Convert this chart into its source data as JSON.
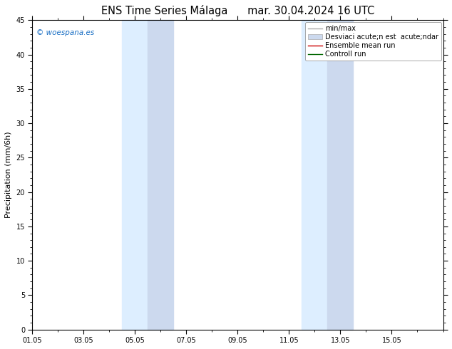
{
  "title_left": "ENS Time Series Málaga",
  "title_right": "mar. 30.04.2024 16 UTC",
  "ylabel": "Precipitation (mm/6h)",
  "ylim": [
    0,
    45
  ],
  "yticks": [
    0,
    5,
    10,
    15,
    20,
    25,
    30,
    35,
    40,
    45
  ],
  "xlim": [
    0,
    16
  ],
  "x_tick_labels": [
    "01.05",
    "03.05",
    "05.05",
    "07.05",
    "09.05",
    "11.05",
    "13.05",
    "15.05"
  ],
  "x_tick_positions": [
    0,
    2,
    4,
    6,
    8,
    10,
    12,
    14
  ],
  "shaded_regions": [
    {
      "x_start": 3.5,
      "x_end": 4.5,
      "color": "#ddeeff"
    },
    {
      "x_start": 4.5,
      "x_end": 5.5,
      "color": "#ccd9ee"
    },
    {
      "x_start": 10.5,
      "x_end": 11.5,
      "color": "#ddeeff"
    },
    {
      "x_start": 11.5,
      "x_end": 12.5,
      "color": "#ccd9ee"
    }
  ],
  "legend_labels": [
    "min/max",
    "Desviaci acute;n est  acute;ndar",
    "Ensemble mean run",
    "Controll run"
  ],
  "watermark": "© woespana.es",
  "watermark_color": "#1a6fc4",
  "background_color": "#ffffff",
  "title_fontsize": 10.5,
  "ylabel_fontsize": 8,
  "tick_fontsize": 7,
  "legend_fontsize": 7
}
